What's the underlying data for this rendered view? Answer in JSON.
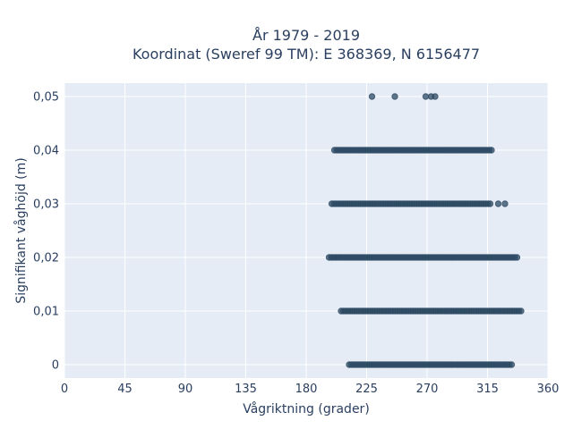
{
  "chart_data": {
    "type": "scatter",
    "title_lines": [
      "År 1979 - 2019",
      "Koordinat (Sweref 99 TM): E 368369, N 6156477"
    ],
    "xlabel": "Vågriktning (grader)",
    "ylabel": "Signifikant våghöjd (m)",
    "xlim": [
      0,
      360
    ],
    "ylim": [
      -0.0025,
      0.0525
    ],
    "xticks": [
      0,
      45,
      90,
      135,
      180,
      225,
      270,
      315,
      360
    ],
    "xtick_labels": [
      "0",
      "45",
      "90",
      "135",
      "180",
      "225",
      "270",
      "315",
      "360"
    ],
    "yticks": [
      0,
      0.01,
      0.02,
      0.03,
      0.04,
      0.05
    ],
    "ytick_labels": [
      "0",
      "0,01",
      "0,02",
      "0,03",
      "0,04",
      "0,05"
    ],
    "grid": true,
    "color": "#2c4a63",
    "bands": [
      {
        "y": 0,
        "x_min": 212,
        "x_max": 333
      },
      {
        "y": 0.01,
        "x_min": 206,
        "x_max": 340
      },
      {
        "y": 0.02,
        "x_min": 197,
        "x_max": 337
      },
      {
        "y": 0.03,
        "x_min": 199,
        "x_max": 317
      },
      {
        "y": 0.04,
        "x_min": 201,
        "x_max": 318
      }
    ],
    "points": [
      {
        "x": 323,
        "y": 0.03
      },
      {
        "x": 328,
        "y": 0.03
      },
      {
        "x": 229,
        "y": 0.05
      },
      {
        "x": 246,
        "y": 0.05
      },
      {
        "x": 269,
        "y": 0.05
      },
      {
        "x": 273,
        "y": 0.05
      },
      {
        "x": 276,
        "y": 0.05
      }
    ]
  }
}
